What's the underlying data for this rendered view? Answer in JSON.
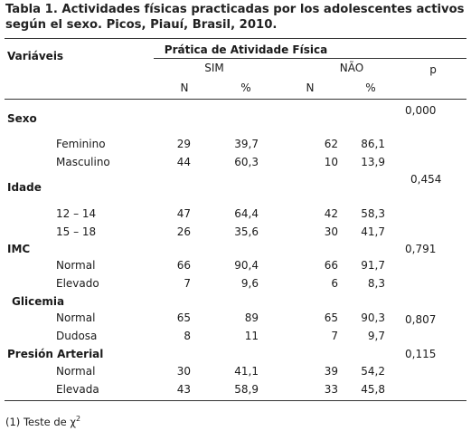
{
  "table": {
    "title_line1": "Tabla 1. Actividades físicas practicadas por los adolescentes activos",
    "title_line2": "según el  sexo. Picos, Piauí, Brasil, 2010.",
    "header": {
      "variables": "Variáveis",
      "group": "Prática de Atividade Física",
      "sim": "SIM",
      "nao": "NÃO",
      "p": "p",
      "n1": "N",
      "pct1": "%",
      "n2": "N",
      "pct2": "%"
    },
    "sections": [
      {
        "label": "Sexo",
        "p": "0,000",
        "rows": [
          {
            "label": "Feminino",
            "n1": "29",
            "pct1": "39,7",
            "n2": "62",
            "pct2": "86,1"
          },
          {
            "label": "Masculino",
            "n1": "44",
            "pct1": "60,3",
            "n2": "10",
            "pct2": "13,9"
          }
        ]
      },
      {
        "label": "Idade",
        "p": "0,454",
        "rows": [
          {
            "label": "12 – 14",
            "n1": "47",
            "pct1": "64,4",
            "n2": "42",
            "pct2": "58,3"
          },
          {
            "label": "15 – 18",
            "n1": "26",
            "pct1": "35,6",
            "n2": "30",
            "pct2": "41,7"
          }
        ]
      },
      {
        "label": "IMC",
        "p": "0,791",
        "rows": [
          {
            "label": "Normal",
            "n1": "66",
            "pct1": "90,4",
            "n2": "66",
            "pct2": "91,7"
          },
          {
            "label": "Elevado",
            "n1": "7",
            "pct1": "9,6",
            "n2": "6",
            "pct2": "8,3"
          }
        ]
      },
      {
        "label": "Glicemia",
        "p": "0,807",
        "rows": [
          {
            "label": "Normal",
            "n1": "65",
            "pct1": "89",
            "n2": "65",
            "pct2": "90,3"
          },
          {
            "label": "Dudosa",
            "n1": "8",
            "pct1": "11",
            "n2": "7",
            "pct2": "9,7"
          }
        ]
      },
      {
        "label": "Presión Arterial",
        "p": "0,115",
        "rows": [
          {
            "label": "Normal",
            "n1": "30",
            "pct1": "41,1",
            "n2": "39",
            "pct2": "54,2"
          },
          {
            "label": "Elevada",
            "n1": "43",
            "pct1": "58,9",
            "n2": "33",
            "pct2": "45,8"
          }
        ]
      }
    ],
    "footnote": "(1) Teste de χ",
    "footnote_sup": "2"
  }
}
